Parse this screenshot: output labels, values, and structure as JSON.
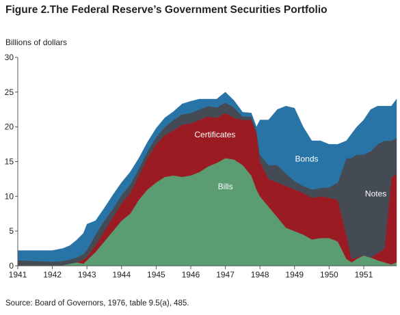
{
  "title": "Figure 2.The Federal Reserve’s Government Securities Portfolio",
  "source": "Source: Board of Governors, 1976, table 9.5(a), 485.",
  "chart_data": {
    "type": "area",
    "stacked": true,
    "ylabel": "Billions of dollars",
    "xlabel": "",
    "xlim": [
      1941,
      1951.95
    ],
    "ylim": [
      0,
      30
    ],
    "yticks": [
      0,
      5,
      10,
      15,
      20,
      25,
      30
    ],
    "xticks": [
      "1941",
      "1942",
      "1943",
      "1944",
      "1945",
      "1946",
      "1947",
      "1948",
      "1949",
      "1950",
      "1951"
    ],
    "grid": false,
    "legend": "labels placed inside areas",
    "x": [
      1941.0,
      1941.5,
      1942.0,
      1942.3,
      1942.5,
      1942.7,
      1942.9,
      1943.0,
      1943.25,
      1943.5,
      1943.75,
      1944.0,
      1944.25,
      1944.5,
      1944.75,
      1945.0,
      1945.25,
      1945.5,
      1945.75,
      1946.0,
      1946.25,
      1946.5,
      1946.75,
      1947.0,
      1947.25,
      1947.5,
      1947.75,
      1947.9,
      1948.0,
      1948.25,
      1948.5,
      1948.75,
      1949.0,
      1949.25,
      1949.5,
      1949.75,
      1950.0,
      1950.25,
      1950.5,
      1950.65,
      1950.8,
      1951.0,
      1951.2,
      1951.4,
      1951.6,
      1951.8,
      1951.95
    ],
    "series": [
      {
        "name": "Bills",
        "color": "#5b9c72",
        "values": [
          0.0,
          0.0,
          0.0,
          0.1,
          0.3,
          0.5,
          0.3,
          0.8,
          2.0,
          3.5,
          5.0,
          6.5,
          7.5,
          9.5,
          11.0,
          12.0,
          12.8,
          13.0,
          12.8,
          13.0,
          13.5,
          14.3,
          14.8,
          15.5,
          15.3,
          14.5,
          13.0,
          11.0,
          10.0,
          8.5,
          7.0,
          5.5,
          5.0,
          4.5,
          3.8,
          4.0,
          4.0,
          3.5,
          1.0,
          0.5,
          1.0,
          1.5,
          1.2,
          0.8,
          0.5,
          0.2,
          0.5
        ]
      },
      {
        "name": "Certificates",
        "color": "#9b1b22",
        "values": [
          0.0,
          0.0,
          0.0,
          0.0,
          0.0,
          0.0,
          0.6,
          0.5,
          1.0,
          1.5,
          2.0,
          2.5,
          3.0,
          3.5,
          4.5,
          5.5,
          6.0,
          6.5,
          7.5,
          7.5,
          7.5,
          7.2,
          6.5,
          6.5,
          6.0,
          6.5,
          8.0,
          8.0,
          5.0,
          4.0,
          5.0,
          6.0,
          6.0,
          6.0,
          6.0,
          6.0,
          5.8,
          6.0,
          3.5,
          0.5,
          0.2,
          0.0,
          0.0,
          1.0,
          2.0,
          12.5,
          12.7
        ]
      },
      {
        "name": "Notes",
        "color": "#454b54",
        "values": [
          0.8,
          0.7,
          0.6,
          0.6,
          0.6,
          0.7,
          0.8,
          1.0,
          1.5,
          1.5,
          1.2,
          1.2,
          1.2,
          1.0,
          1.0,
          1.0,
          1.2,
          1.5,
          1.5,
          1.5,
          1.5,
          1.5,
          1.5,
          1.5,
          1.5,
          0.5,
          0.5,
          0.5,
          1.0,
          2.0,
          2.5,
          1.8,
          1.2,
          1.0,
          1.2,
          1.2,
          1.5,
          2.5,
          11.0,
          14.5,
          14.8,
          14.5,
          15.3,
          15.7,
          15.5,
          5.3,
          5.2
        ]
      },
      {
        "name": "Bonds",
        "color": "#2874a6",
        "values": [
          1.4,
          1.5,
          1.6,
          1.8,
          2.0,
          2.5,
          3.0,
          3.7,
          2.0,
          1.8,
          2.0,
          1.8,
          1.8,
          1.5,
          1.3,
          1.3,
          1.3,
          1.2,
          1.5,
          1.7,
          1.5,
          1.0,
          1.2,
          1.5,
          1.0,
          0.6,
          0.5,
          0.5,
          5.0,
          6.5,
          8.0,
          9.7,
          10.5,
          8.5,
          7.0,
          6.8,
          6.2,
          5.5,
          2.5,
          3.5,
          4.0,
          5.0,
          6.0,
          5.5,
          5.0,
          5.0,
          5.6
        ]
      }
    ],
    "labels": [
      {
        "name": "Bills",
        "x": 1947.0,
        "y": 11.0
      },
      {
        "name": "Certificates",
        "x": 1946.7,
        "y": 18.5
      },
      {
        "name": "Bonds",
        "x": 1949.35,
        "y": 15.0
      },
      {
        "name": "Notes",
        "x": 1951.35,
        "y": 10.0
      }
    ]
  }
}
